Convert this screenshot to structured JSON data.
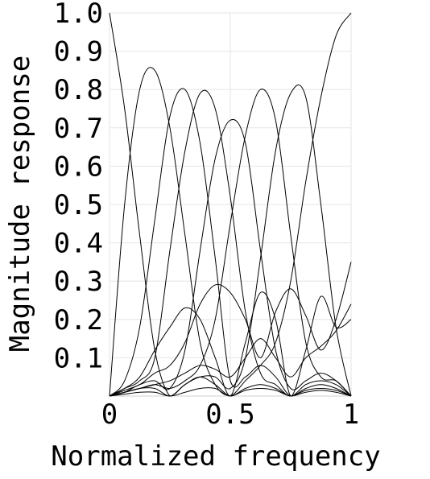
{
  "chart_data": {
    "type": "line",
    "title": "",
    "xlabel": "Normalized frequency",
    "ylabel": "Magnitude response",
    "xlim": [
      0,
      1
    ],
    "ylim": [
      0,
      1.0
    ],
    "x_ticks": [
      "0",
      "0.5",
      "1"
    ],
    "y_ticks": [
      "0.1",
      "0.2",
      "0.3",
      "0.4",
      "0.5",
      "0.6",
      "0.7",
      "0.8",
      "0.9",
      "1.0"
    ],
    "grid": true,
    "line_color": "#000000",
    "series": [
      {
        "x": [
          0,
          0.0625,
          0.125,
          0.1875,
          0.25,
          0.3125,
          0.375,
          0.4375,
          0.5,
          0.5625,
          0.625,
          0.6875,
          0.75,
          0.8125,
          0.875,
          0.9375,
          1
        ],
        "y": [
          1.0,
          0.75,
          0.42,
          0.12,
          0,
          0.03,
          0.05,
          0.03,
          0,
          0.015,
          0.02,
          0.015,
          0,
          0.01,
          0.015,
          0.01,
          0
        ]
      },
      {
        "x": [
          0,
          0.0625,
          0.125,
          0.1875,
          0.25,
          0.3125,
          0.375,
          0.4375,
          0.5,
          0.5625,
          0.625,
          0.6875,
          0.75,
          0.8125,
          0.875,
          0.9375,
          1
        ],
        "y": [
          0,
          0.5,
          0.8,
          0.85,
          0.7,
          0.42,
          0.14,
          0.03,
          0,
          0.02,
          0.03,
          0.02,
          0,
          0.015,
          0.02,
          0.015,
          0
        ]
      },
      {
        "x": [
          0,
          0.0625,
          0.125,
          0.1875,
          0.25,
          0.3125,
          0.375,
          0.4375,
          0.5,
          0.5625,
          0.625,
          0.6875,
          0.75,
          0.8125,
          0.875,
          0.9375,
          1
        ],
        "y": [
          0,
          0.04,
          0.18,
          0.46,
          0.73,
          0.8,
          0.66,
          0.36,
          0.04,
          0.05,
          0.08,
          0.05,
          0,
          0.02,
          0.03,
          0.02,
          0
        ]
      },
      {
        "x": [
          0,
          0.0625,
          0.125,
          0.1875,
          0.25,
          0.3125,
          0.375,
          0.4375,
          0.5,
          0.5625,
          0.625,
          0.6875,
          0.75,
          0.8125,
          0.875,
          0.9375,
          1
        ],
        "y": [
          0,
          0.02,
          0.04,
          0.1,
          0.38,
          0.64,
          0.79,
          0.75,
          0.52,
          0.22,
          0.06,
          0.03,
          0,
          0.03,
          0.04,
          0.03,
          0
        ]
      },
      {
        "x": [
          0,
          0.0625,
          0.125,
          0.1875,
          0.25,
          0.3125,
          0.375,
          0.4375,
          0.5,
          0.5625,
          0.625,
          0.6875,
          0.75,
          0.8125,
          0.875,
          0.9375,
          1
        ],
        "y": [
          0,
          0.01,
          0.03,
          0.04,
          0.02,
          0.12,
          0.38,
          0.62,
          0.72,
          0.66,
          0.38,
          0.12,
          0.02,
          0.04,
          0.06,
          0.04,
          0
        ]
      },
      {
        "x": [
          0,
          0.0625,
          0.125,
          0.1875,
          0.25,
          0.3125,
          0.375,
          0.4375,
          0.5,
          0.5625,
          0.625,
          0.6875,
          0.75,
          0.8125,
          0.875,
          0.9375,
          1
        ],
        "y": [
          0,
          0.01,
          0.02,
          0.03,
          0.02,
          0.04,
          0.08,
          0.2,
          0.45,
          0.68,
          0.8,
          0.72,
          0.42,
          0.14,
          0.05,
          0.04,
          0
        ]
      },
      {
        "x": [
          0,
          0.0625,
          0.125,
          0.1875,
          0.25,
          0.3125,
          0.375,
          0.4375,
          0.5,
          0.5625,
          0.625,
          0.6875,
          0.75,
          0.8125,
          0.875,
          0.9375,
          1
        ],
        "y": [
          0,
          0.01,
          0.02,
          0.02,
          0,
          0.03,
          0.05,
          0.05,
          0.02,
          0.1,
          0.36,
          0.64,
          0.79,
          0.78,
          0.5,
          0.18,
          0
        ]
      },
      {
        "x": [
          0,
          0.0625,
          0.125,
          0.1875,
          0.25,
          0.3125,
          0.375,
          0.4375,
          0.5,
          0.5625,
          0.625,
          0.6875,
          0.75,
          0.8125,
          0.875,
          0.9375,
          1
        ],
        "y": [
          0,
          0.005,
          0.01,
          0.01,
          0,
          0.01,
          0.02,
          0.02,
          0,
          0.04,
          0.08,
          0.14,
          0.3,
          0.56,
          0.78,
          0.94,
          1.0
        ]
      },
      {
        "x": [
          0,
          0.0625,
          0.125,
          0.1875,
          0.25,
          0.3125,
          0.375,
          0.4375,
          0.5,
          0.5625,
          0.625,
          0.6875,
          0.75,
          0.8125,
          0.875,
          0.9375,
          1
        ],
        "y": [
          0,
          0.02,
          0.05,
          0.12,
          0.18,
          0.23,
          0.2,
          0.1,
          0,
          0.14,
          0.27,
          0.2,
          0,
          0.12,
          0.26,
          0.18,
          0.2
        ]
      },
      {
        "x": [
          0,
          0.0625,
          0.125,
          0.1875,
          0.25,
          0.3125,
          0.375,
          0.4375,
          0.5,
          0.5625,
          0.625,
          0.6875,
          0.75,
          0.8125,
          0.875,
          0.9375,
          1
        ],
        "y": [
          0,
          0.015,
          0.03,
          0.06,
          0.08,
          0.14,
          0.24,
          0.29,
          0.27,
          0.2,
          0.1,
          0.22,
          0.28,
          0.21,
          0.12,
          0.2,
          0.35
        ]
      },
      {
        "x": [
          0,
          0.0625,
          0.125,
          0.1875,
          0.25,
          0.3125,
          0.375,
          0.4375,
          0.5,
          0.5625,
          0.625,
          0.6875,
          0.75,
          0.8125,
          0.875,
          0.9375,
          1
        ],
        "y": [
          0,
          0.01,
          0.02,
          0.03,
          0.04,
          0.06,
          0.08,
          0.07,
          0.05,
          0.1,
          0.15,
          0.1,
          0.05,
          0.1,
          0.13,
          0.17,
          0.24
        ]
      }
    ]
  }
}
